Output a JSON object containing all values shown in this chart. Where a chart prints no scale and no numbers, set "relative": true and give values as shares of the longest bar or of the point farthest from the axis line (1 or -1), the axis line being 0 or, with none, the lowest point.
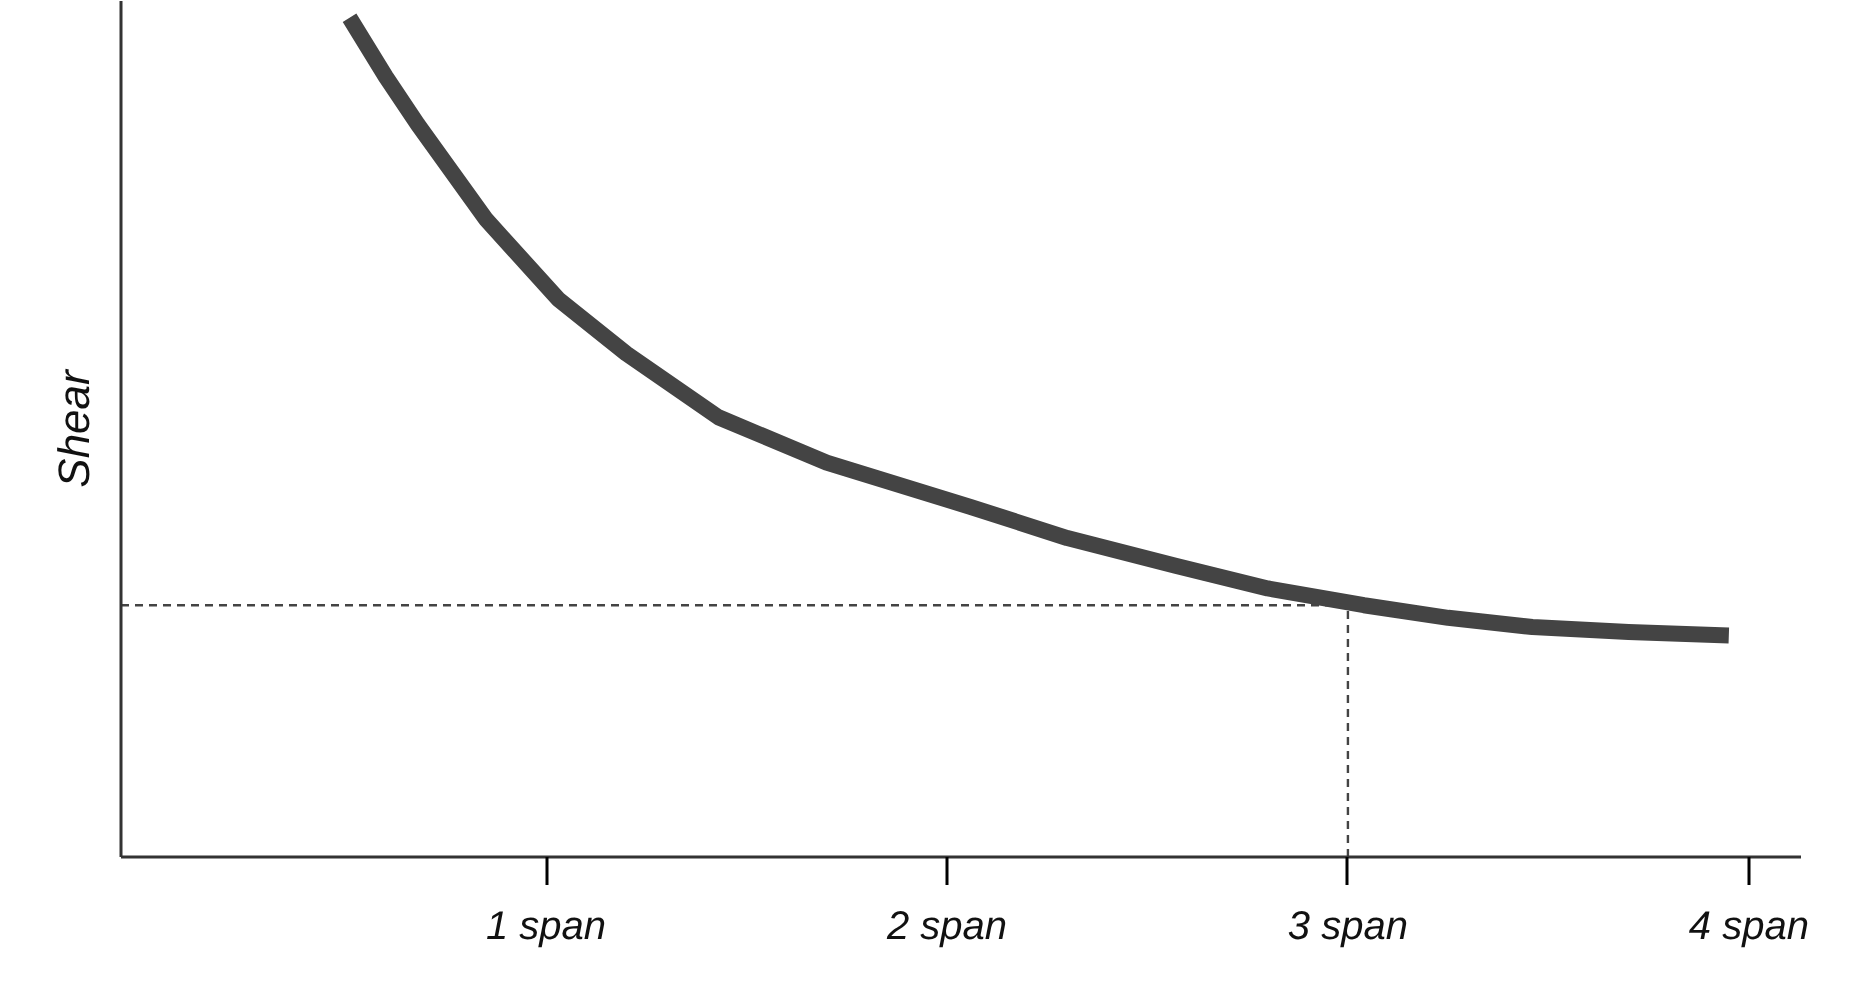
{
  "chart_data": {
    "type": "line",
    "relative": true,
    "ylabel": "Shear",
    "xlim": [
      -0.06,
      4.13
    ],
    "xticks": [
      {
        "value": 1,
        "label": "1 span"
      },
      {
        "value": 2,
        "label": "2 span"
      },
      {
        "value": 3,
        "label": "3 span"
      },
      {
        "value": 4,
        "label": "4 span"
      }
    ],
    "x": [
      0.51,
      0.6,
      0.68,
      0.85,
      1.03,
      1.2,
      1.43,
      1.7,
      2.06,
      2.3,
      2.57,
      2.8,
      3.04,
      3.25,
      3.46,
      3.7,
      3.95
    ],
    "series": [
      {
        "color": "#444444",
        "values": [
          1.0,
          0.93,
          0.873,
          0.76,
          0.665,
          0.6,
          0.524,
          0.47,
          0.417,
          0.38,
          0.347,
          0.32,
          0.3,
          0.285,
          0.274,
          0.268,
          0.264
        ]
      }
    ],
    "ref_lines": [
      {
        "axis": "x",
        "value": 3,
        "line_style": "dashed",
        "color": "#444444"
      },
      {
        "axis": "y",
        "value": 0.3,
        "line_style": "dashed",
        "color": "#444444"
      }
    ],
    "tick_labels": "x",
    "grid": false,
    "marker": "none",
    "line_style": "solid"
  }
}
